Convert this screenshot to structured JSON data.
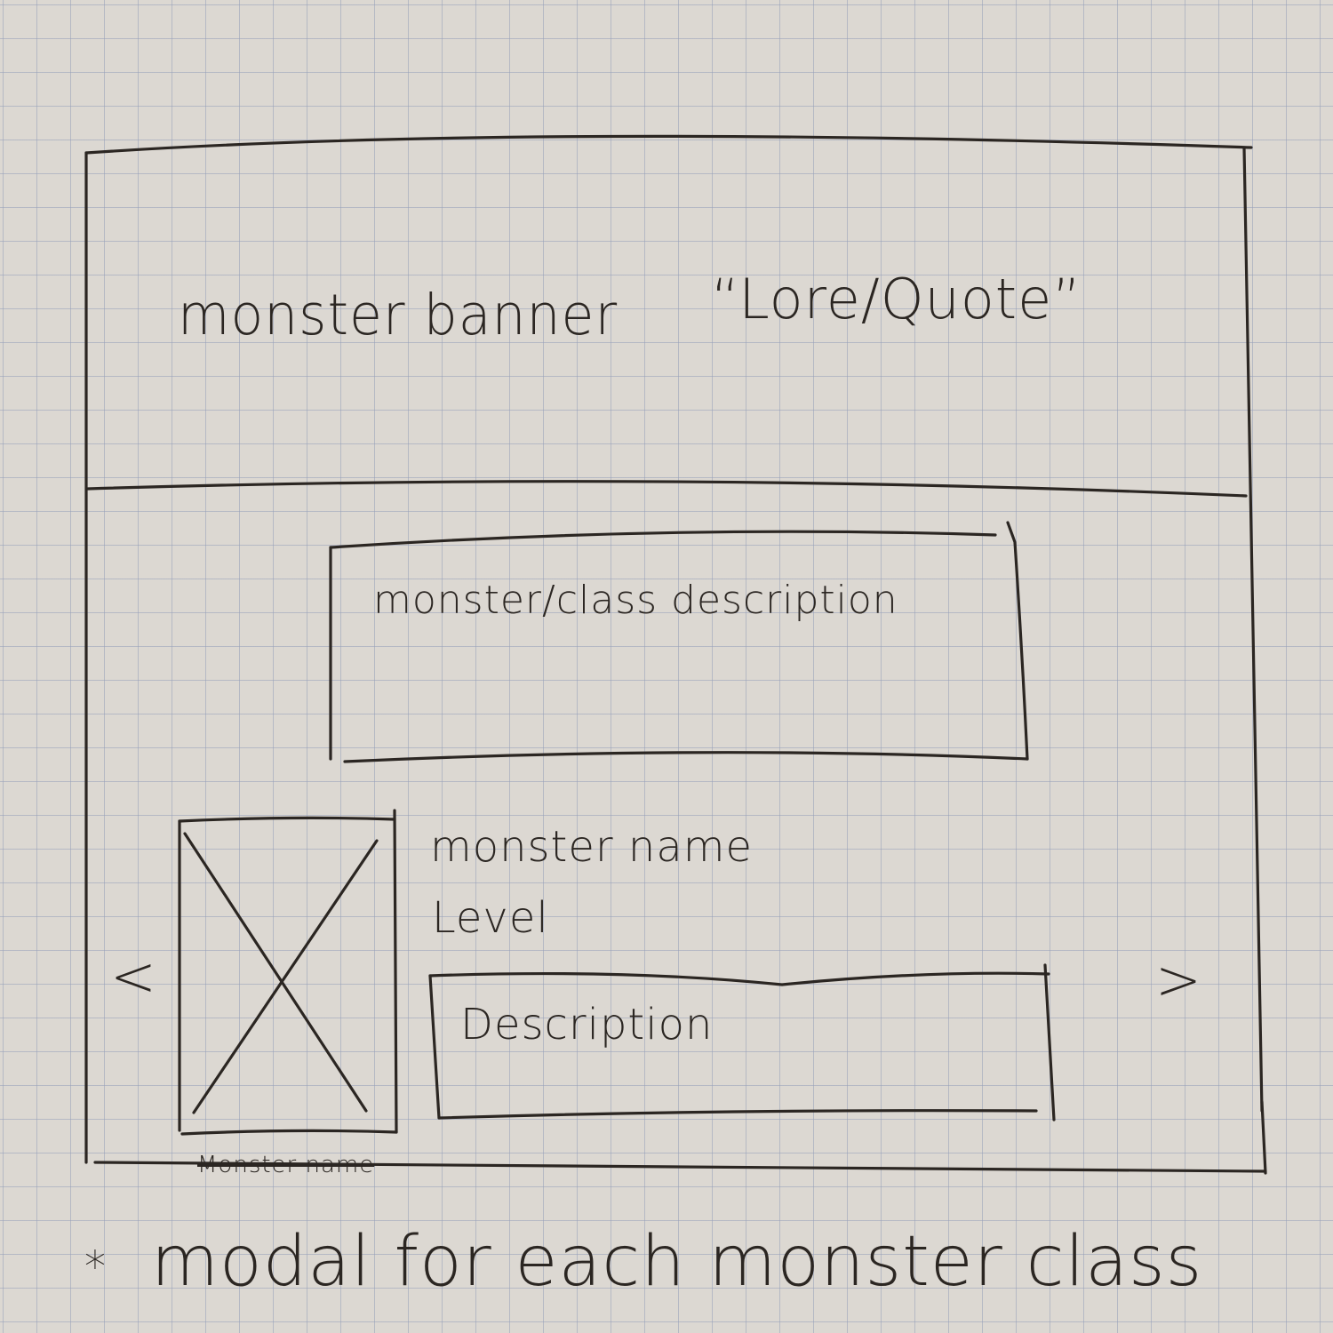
{
  "banner": {
    "label": "monster banner",
    "quote": "“Lore/Quote”"
  },
  "class_description": {
    "label": "monster/class description"
  },
  "carousel": {
    "prev": "<",
    "next": ">",
    "image_icon": "image-placeholder-icon",
    "image_caption": "Monster name",
    "monster_name": "monster name",
    "level": "Level",
    "description": "Description"
  },
  "note": {
    "star": "*",
    "text": "modal for each monster class"
  }
}
